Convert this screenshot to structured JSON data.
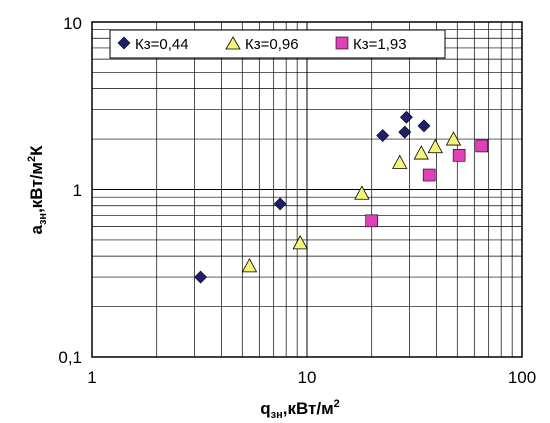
{
  "chart_data": {
    "type": "scatter",
    "title": "",
    "xscale": "log",
    "yscale": "log",
    "xlim": [
      1,
      100
    ],
    "ylim": [
      0.1,
      10
    ],
    "x_ticks": [
      "1",
      "10",
      "100"
    ],
    "y_ticks": [
      "0,1",
      "1",
      "10"
    ],
    "xlabel": {
      "base": "q",
      "sub": "зн",
      "mid": ",кВт/м",
      "sup": "2"
    },
    "ylabel": {
      "base": "a",
      "sub": "зн",
      "mid": ",кВт/м",
      "sup": "2",
      "end": "К"
    },
    "grid": true,
    "legend_position": "top",
    "series": [
      {
        "name": "Кз=0,44",
        "marker": "diamond",
        "color": "#1f1f6b",
        "points": [
          {
            "x": 3.2,
            "y": 0.3
          },
          {
            "x": 7.5,
            "y": 0.82
          },
          {
            "x": 22.5,
            "y": 2.1
          },
          {
            "x": 28.5,
            "y": 2.2
          },
          {
            "x": 29.0,
            "y": 2.7
          },
          {
            "x": 35.0,
            "y": 2.4
          }
        ]
      },
      {
        "name": "Кз=0,96",
        "marker": "triangle",
        "color": "#f5f57a",
        "points": [
          {
            "x": 5.4,
            "y": 0.35
          },
          {
            "x": 9.3,
            "y": 0.48
          },
          {
            "x": 18.0,
            "y": 0.95
          },
          {
            "x": 27.0,
            "y": 1.45
          },
          {
            "x": 34.0,
            "y": 1.65
          },
          {
            "x": 39.5,
            "y": 1.8
          },
          {
            "x": 48.0,
            "y": 2.0
          }
        ]
      },
      {
        "name": "Кз=1,93",
        "marker": "square",
        "color": "#e040b8",
        "points": [
          {
            "x": 20.0,
            "y": 0.65
          },
          {
            "x": 37.0,
            "y": 1.22
          },
          {
            "x": 51.0,
            "y": 1.6
          },
          {
            "x": 65.0,
            "y": 1.82
          }
        ]
      }
    ]
  }
}
